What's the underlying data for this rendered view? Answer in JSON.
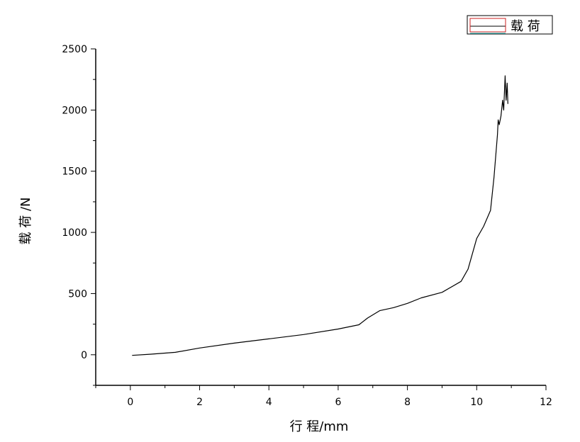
{
  "chart_data": {
    "type": "line",
    "title": "",
    "xlabel": "行 程/mm",
    "ylabel": "载 荷 /N",
    "xlim": [
      -1,
      12
    ],
    "ylim": [
      -250,
      2500
    ],
    "x_ticks": [
      0,
      2,
      4,
      6,
      8,
      10,
      12
    ],
    "y_ticks": [
      0,
      500,
      1000,
      1500,
      2000,
      2500
    ],
    "grid": false,
    "legend": {
      "placement": "top-right",
      "entries": [
        "载 荷"
      ]
    },
    "series": [
      {
        "name": "载 荷",
        "color": "#000000",
        "points": [
          [
            0.05,
            -5
          ],
          [
            0.6,
            5
          ],
          [
            1.3,
            20
          ],
          [
            2.0,
            55
          ],
          [
            3.0,
            95
          ],
          [
            4.0,
            130
          ],
          [
            5.0,
            165
          ],
          [
            6.0,
            210
          ],
          [
            6.6,
            245
          ],
          [
            6.85,
            300
          ],
          [
            7.2,
            360
          ],
          [
            7.6,
            385
          ],
          [
            8.0,
            420
          ],
          [
            8.4,
            465
          ],
          [
            9.0,
            510
          ],
          [
            9.55,
            600
          ],
          [
            9.75,
            700
          ],
          [
            10.0,
            950
          ],
          [
            10.2,
            1050
          ],
          [
            10.4,
            1180
          ],
          [
            10.5,
            1450
          ],
          [
            10.6,
            1800
          ],
          [
            10.62,
            1920
          ],
          [
            10.65,
            1880
          ],
          [
            10.7,
            1950
          ],
          [
            10.75,
            2080
          ],
          [
            10.78,
            2000
          ],
          [
            10.82,
            2280
          ],
          [
            10.85,
            2080
          ],
          [
            10.88,
            2220
          ],
          [
            10.9,
            2050
          ]
        ]
      }
    ]
  }
}
